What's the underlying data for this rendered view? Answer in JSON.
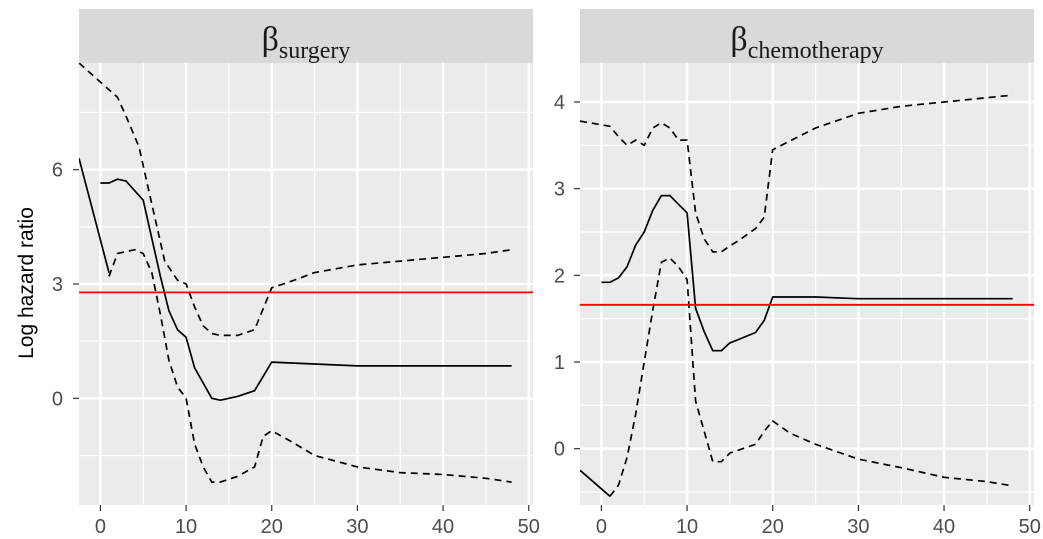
{
  "chart_data": {
    "type": "line",
    "ylabel": "Log hazard ratio",
    "xlabel": "",
    "grid": true,
    "reference_line_color": "#ff0000",
    "panels": [
      {
        "title_symbol": "β",
        "title_subscript": "surgery",
        "xlim": [
          -2.5,
          50.5
        ],
        "ylim": [
          -2.8,
          8.8
        ],
        "xticks": [
          0,
          10,
          20,
          30,
          40,
          50
        ],
        "yticks": [
          0,
          3,
          6
        ],
        "reference_y": 2.78,
        "series": [
          {
            "role": "estimate",
            "style": "solid",
            "segments": [
              [
                [
                  -2.5,
                  6.3
                ],
                [
                  1,
                  3.3
                ]
              ],
              [
                [
                  0,
                  5.65
                ],
                [
                  1,
                  5.65
                ],
                [
                  2,
                  5.75
                ],
                [
                  3,
                  5.7
                ],
                [
                  5,
                  5.2
                ],
                [
                  6,
                  4.2
                ],
                [
                  7,
                  3.2
                ],
                [
                  8,
                  2.3
                ],
                [
                  9,
                  1.8
                ],
                [
                  10,
                  1.6
                ],
                [
                  11,
                  0.8
                ],
                [
                  12,
                  0.4
                ],
                [
                  13,
                  0.0
                ],
                [
                  14,
                  -0.05
                ],
                [
                  16,
                  0.05
                ],
                [
                  18,
                  0.2
                ],
                [
                  20,
                  0.95
                ],
                [
                  25,
                  0.9
                ],
                [
                  30,
                  0.85
                ],
                [
                  40,
                  0.85
                ],
                [
                  48,
                  0.85
                ]
              ]
            ]
          },
          {
            "role": "upper",
            "style": "dashed",
            "segments": [
              [
                [
                  -2.5,
                  8.8
                ],
                [
                  0.5,
                  8.2
                ],
                [
                  2,
                  7.9
                ],
                [
                  3,
                  7.4
                ],
                [
                  4.5,
                  6.6
                ],
                [
                  5.5,
                  5.6
                ],
                [
                  6.5,
                  4.6
                ],
                [
                  7.5,
                  3.6
                ],
                [
                  9,
                  3.1
                ],
                [
                  10,
                  3.0
                ],
                [
                  11,
                  2.4
                ],
                [
                  12,
                  1.9
                ],
                [
                  13,
                  1.7
                ],
                [
                  14,
                  1.65
                ],
                [
                  16,
                  1.65
                ],
                [
                  18,
                  1.8
                ],
                [
                  20,
                  2.9
                ],
                [
                  22,
                  3.05
                ],
                [
                  25,
                  3.3
                ],
                [
                  30,
                  3.5
                ],
                [
                  35,
                  3.6
                ],
                [
                  40,
                  3.7
                ],
                [
                  45,
                  3.8
                ],
                [
                  48,
                  3.9
                ]
              ]
            ]
          },
          {
            "role": "lower",
            "style": "dashed",
            "segments": [
              [
                [
                  1,
                  3.2
                ],
                [
                  2,
                  3.8
                ],
                [
                  3,
                  3.85
                ],
                [
                  4,
                  3.9
                ],
                [
                  5,
                  3.8
                ],
                [
                  6,
                  3.3
                ],
                [
                  7,
                  2.2
                ],
                [
                  8,
                  1.0
                ],
                [
                  9,
                  0.3
                ],
                [
                  10,
                  0.0
                ],
                [
                  11,
                  -1.2
                ],
                [
                  12,
                  -1.8
                ],
                [
                  13,
                  -2.2
                ],
                [
                  14,
                  -2.2
                ],
                [
                  16,
                  -2.05
                ],
                [
                  18,
                  -1.8
                ],
                [
                  19,
                  -1.0
                ],
                [
                  20,
                  -0.85
                ],
                [
                  22,
                  -1.1
                ],
                [
                  25,
                  -1.5
                ],
                [
                  30,
                  -1.8
                ],
                [
                  35,
                  -1.95
                ],
                [
                  40,
                  -2.0
                ],
                [
                  45,
                  -2.1
                ],
                [
                  48,
                  -2.2
                ]
              ]
            ]
          }
        ]
      },
      {
        "title_symbol": "β",
        "title_subscript": "chemotherapy",
        "xlim": [
          -2.5,
          50.5
        ],
        "ylim": [
          -0.65,
          4.45
        ],
        "xticks": [
          0,
          10,
          20,
          30,
          40,
          50
        ],
        "yticks": [
          0,
          1,
          2,
          3,
          4
        ],
        "reference_y": 1.66,
        "series": [
          {
            "role": "estimate",
            "style": "solid",
            "segments": [
              [
                [
                  -2.5,
                  -0.25
                ],
                [
                  1,
                  -0.55
                ]
              ],
              [
                [
                  0,
                  1.92
                ],
                [
                  1,
                  1.92
                ],
                [
                  2,
                  1.97
                ],
                [
                  3,
                  2.1
                ],
                [
                  4,
                  2.35
                ],
                [
                  5,
                  2.5
                ],
                [
                  6,
                  2.75
                ],
                [
                  7,
                  2.92
                ],
                [
                  8,
                  2.92
                ],
                [
                  9,
                  2.82
                ],
                [
                  10,
                  2.72
                ],
                [
                  11,
                  1.62
                ],
                [
                  12,
                  1.35
                ],
                [
                  13,
                  1.13
                ],
                [
                  14,
                  1.13
                ],
                [
                  15,
                  1.22
                ],
                [
                  16,
                  1.26
                ],
                [
                  18,
                  1.34
                ],
                [
                  19,
                  1.48
                ],
                [
                  20,
                  1.75
                ],
                [
                  25,
                  1.75
                ],
                [
                  30,
                  1.73
                ],
                [
                  40,
                  1.73
                ],
                [
                  48,
                  1.73
                ]
              ]
            ]
          },
          {
            "role": "upper",
            "style": "dashed",
            "segments": [
              [
                [
                  -2.5,
                  3.78
                ],
                [
                  1,
                  3.72
                ],
                [
                  2,
                  3.6
                ],
                [
                  3,
                  3.5
                ],
                [
                  4,
                  3.56
                ],
                [
                  5,
                  3.5
                ],
                [
                  6,
                  3.7
                ],
                [
                  7,
                  3.76
                ],
                [
                  8,
                  3.7
                ],
                [
                  9,
                  3.56
                ],
                [
                  10,
                  3.56
                ],
                [
                  11,
                  2.72
                ],
                [
                  12,
                  2.42
                ],
                [
                  13,
                  2.27
                ],
                [
                  14,
                  2.27
                ],
                [
                  15,
                  2.34
                ],
                [
                  16,
                  2.4
                ],
                [
                  18,
                  2.54
                ],
                [
                  19,
                  2.67
                ],
                [
                  20,
                  3.45
                ],
                [
                  22,
                  3.55
                ],
                [
                  25,
                  3.7
                ],
                [
                  30,
                  3.87
                ],
                [
                  35,
                  3.95
                ],
                [
                  40,
                  4.0
                ],
                [
                  45,
                  4.05
                ],
                [
                  48,
                  4.08
                ]
              ]
            ]
          },
          {
            "role": "lower",
            "style": "dashed",
            "segments": [
              [
                [
                  1,
                  -0.55
                ],
                [
                  2,
                  -0.42
                ],
                [
                  3,
                  -0.1
                ],
                [
                  4,
                  0.4
                ],
                [
                  5,
                  1.0
                ],
                [
                  6,
                  1.6
                ],
                [
                  7,
                  2.15
                ],
                [
                  8,
                  2.2
                ],
                [
                  9,
                  2.1
                ],
                [
                  10,
                  1.95
                ],
                [
                  11,
                  0.55
                ],
                [
                  12,
                  0.2
                ],
                [
                  13,
                  -0.15
                ],
                [
                  14,
                  -0.15
                ],
                [
                  15,
                  -0.05
                ],
                [
                  18,
                  0.05
                ],
                [
                  19,
                  0.2
                ],
                [
                  20,
                  0.32
                ],
                [
                  22,
                  0.18
                ],
                [
                  25,
                  0.05
                ],
                [
                  30,
                  -0.12
                ],
                [
                  35,
                  -0.22
                ],
                [
                  40,
                  -0.33
                ],
                [
                  45,
                  -0.38
                ],
                [
                  48,
                  -0.43
                ]
              ]
            ]
          }
        ]
      }
    ]
  }
}
